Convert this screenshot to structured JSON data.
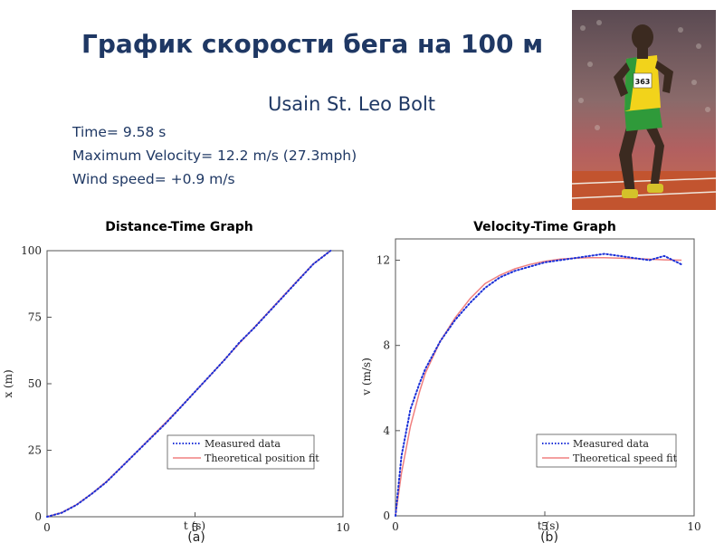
{
  "slide": {
    "title": "График скорости бега на 100 м",
    "subject": "Usain St. Leo Bolt",
    "stats": [
      "Time= 9.58 s",
      "Maximum Velocity= 12.2 m/s (27.3mph)",
      "Wind speed= +0.9 m/s"
    ],
    "photo": {
      "icon": "sprinter-photo",
      "bib": "363"
    }
  },
  "colors": {
    "title": "#1f3864",
    "measured": "#1a2fd8",
    "fit": "#f08080"
  },
  "chart_data": [
    {
      "type": "line",
      "heading": "Distance-Time Graph",
      "panel_label": "(a)",
      "xlabel": "t (s)",
      "ylabel": "x (m)",
      "xlim": [
        0,
        10
      ],
      "ylim": [
        0,
        100
      ],
      "xticks": [
        0,
        5,
        10
      ],
      "yticks": [
        0,
        25,
        50,
        75,
        100
      ],
      "grid": false,
      "legend_position": "bottom-right",
      "series": [
        {
          "name": "Measured data",
          "style": "dotted",
          "color": "#1a2fd8",
          "x": [
            0,
            0.5,
            1,
            1.5,
            2,
            2.5,
            3,
            3.5,
            4,
            4.5,
            5,
            5.5,
            6,
            6.5,
            7,
            7.5,
            8,
            8.5,
            9,
            9.58
          ],
          "y": [
            0,
            1.5,
            4.5,
            8.5,
            13,
            18.5,
            24,
            29.5,
            35,
            41,
            47,
            53,
            59,
            65.5,
            71,
            77,
            83,
            89,
            95,
            100
          ]
        },
        {
          "name": "Theoretical position fit",
          "style": "solid",
          "color": "#f08080",
          "x": [
            0,
            0.5,
            1,
            1.5,
            2,
            2.5,
            3,
            3.5,
            4,
            4.5,
            5,
            5.5,
            6,
            6.5,
            7,
            7.5,
            8,
            8.5,
            9,
            9.58
          ],
          "y": [
            0,
            1.6,
            4.6,
            8.6,
            13.2,
            18.6,
            24.1,
            29.7,
            35.3,
            41.1,
            47,
            53,
            59.1,
            65.2,
            71.2,
            77.2,
            83.2,
            89.2,
            95.1,
            100
          ]
        }
      ]
    },
    {
      "type": "line",
      "heading": "Velocity-Time Graph",
      "panel_label": "(b)",
      "xlabel": "t (s)",
      "ylabel": "v (m/s)",
      "xlim": [
        0,
        10
      ],
      "ylim": [
        0,
        13
      ],
      "xticks": [
        0,
        5,
        10
      ],
      "yticks": [
        0,
        4,
        8,
        12
      ],
      "grid": false,
      "legend_position": "bottom-right",
      "series": [
        {
          "name": "Measured data",
          "style": "dotted",
          "color": "#1a2fd8",
          "x": [
            0,
            0.2,
            0.5,
            0.8,
            1,
            1.5,
            2,
            2.5,
            3,
            3.5,
            4,
            4.5,
            5,
            5.5,
            6,
            6.5,
            7,
            7.5,
            8,
            8.5,
            9,
            9.58
          ],
          "y": [
            0,
            2.8,
            5.0,
            6.2,
            6.9,
            8.2,
            9.2,
            10.0,
            10.7,
            11.2,
            11.5,
            11.7,
            11.9,
            12.0,
            12.1,
            12.2,
            12.3,
            12.2,
            12.1,
            12.0,
            12.2,
            11.8
          ]
        },
        {
          "name": "Theoretical speed fit",
          "style": "solid",
          "color": "#f08080",
          "x": [
            0,
            0.2,
            0.5,
            0.8,
            1,
            1.5,
            2,
            2.5,
            3,
            3.5,
            4,
            4.5,
            5,
            5.5,
            6,
            6.5,
            7,
            7.5,
            8,
            8.5,
            9,
            9.58
          ],
          "y": [
            0,
            2.0,
            4.2,
            5.8,
            6.7,
            8.2,
            9.3,
            10.2,
            10.9,
            11.3,
            11.6,
            11.8,
            11.95,
            12.05,
            12.1,
            12.12,
            12.12,
            12.1,
            12.08,
            12.05,
            12.02,
            12.0
          ]
        }
      ]
    }
  ]
}
